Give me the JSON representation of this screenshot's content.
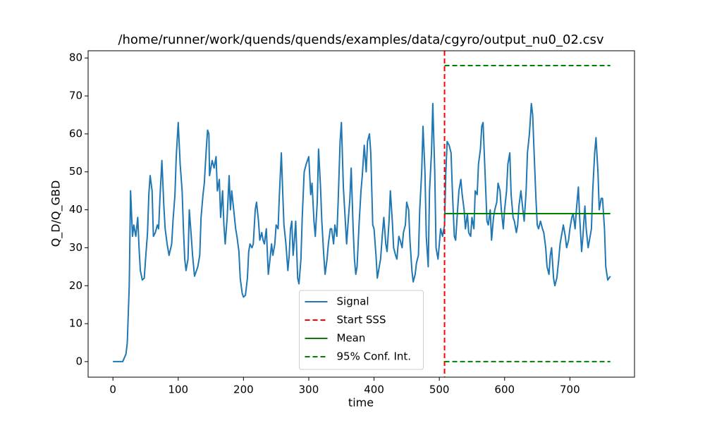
{
  "chart_data": {
    "type": "line",
    "title": "/home/runner/work/quends/quends/examples/data/cgyro/output_nu0_02.csv",
    "x_label": "time",
    "y_label": "Q_D/Q_GBD",
    "xlim": [
      -38,
      799
    ],
    "ylim": [
      -4.1,
      81.9
    ],
    "xticks": [
      0,
      100,
      200,
      300,
      400,
      500,
      600,
      700
    ],
    "yticks": [
      0,
      10,
      20,
      30,
      40,
      50,
      60,
      70,
      80
    ],
    "grid": false,
    "legend": "lower center",
    "series": [
      {
        "name": "Signal",
        "color": "#1f77b4",
        "dash": false,
        "x": [
          0,
          5,
          10,
          15,
          20,
          22,
          25,
          27,
          30,
          32,
          35,
          38,
          40,
          42,
          45,
          48,
          50,
          53,
          55,
          57,
          60,
          62,
          65,
          68,
          70,
          72,
          75,
          78,
          80,
          83,
          86,
          90,
          92,
          95,
          97,
          100,
          103,
          106,
          108,
          110,
          112,
          115,
          117,
          120,
          122,
          125,
          128,
          130,
          133,
          135,
          138,
          140,
          143,
          145,
          147,
          148,
          152,
          155,
          158,
          160,
          163,
          165,
          168,
          170,
          172,
          175,
          178,
          180,
          182,
          185,
          188,
          190,
          193,
          195,
          198,
          200,
          203,
          206,
          208,
          210,
          213,
          215,
          218,
          220,
          223,
          225,
          228,
          230,
          232,
          235,
          238,
          240,
          243,
          245,
          248,
          250,
          253,
          255,
          258,
          260,
          262,
          265,
          268,
          270,
          272,
          274,
          276,
          278,
          280,
          283,
          285,
          288,
          290,
          293,
          296,
          300,
          303,
          305,
          308,
          310,
          313,
          315,
          318,
          320,
          323,
          325,
          328,
          330,
          333,
          335,
          338,
          340,
          343,
          345,
          348,
          350,
          353,
          355,
          358,
          360,
          363,
          365,
          368,
          370,
          372,
          374,
          377,
          380,
          382,
          385,
          388,
          390,
          393,
          395,
          398,
          400,
          403,
          405,
          408,
          410,
          413,
          415,
          418,
          420,
          423,
          425,
          428,
          430,
          433,
          435,
          438,
          440,
          443,
          445,
          448,
          450,
          453,
          455,
          458,
          460,
          463,
          465,
          468,
          470,
          473,
          475,
          478,
          480,
          483,
          485,
          488,
          490,
          493,
          495,
          498,
          500,
          502,
          505,
          508,
          510,
          512,
          515,
          518,
          520,
          523,
          525,
          528,
          530,
          533,
          535,
          538,
          540,
          543,
          545,
          548,
          550,
          553,
          555,
          558,
          560,
          563,
          565,
          567,
          570,
          573,
          575,
          578,
          580,
          583,
          585,
          588,
          590,
          593,
          595,
          598,
          600,
          603,
          605,
          608,
          610,
          613,
          615,
          618,
          620,
          622,
          625,
          628,
          630,
          633,
          635,
          638,
          641,
          643,
          645,
          648,
          650,
          652,
          655,
          658,
          660,
          663,
          665,
          668,
          670,
          672,
          675,
          677,
          680,
          683,
          685,
          688,
          690,
          693,
          695,
          698,
          700,
          703,
          705,
          708,
          710,
          713,
          715,
          718,
          720,
          723,
          725,
          728,
          730,
          733,
          735,
          738,
          740,
          743,
          745,
          748,
          750,
          753,
          755,
          758,
          760,
          762
        ],
        "values": [
          0,
          0,
          0,
          0,
          2,
          5,
          20,
          45,
          33,
          36,
          33,
          38,
          30,
          24,
          21.5,
          22,
          27,
          34,
          44,
          49,
          45,
          33,
          34,
          36,
          35,
          43,
          53,
          41,
          35,
          31,
          28,
          31,
          37,
          44,
          54,
          63,
          52,
          45,
          35,
          27,
          24,
          27,
          40,
          33,
          28,
          22.5,
          24,
          25,
          28,
          38,
          44,
          47,
          56,
          61,
          60,
          49,
          53,
          51,
          54,
          45,
          48,
          38,
          45,
          36,
          31,
          38,
          49,
          40,
          45,
          40,
          35,
          33,
          29,
          22,
          18,
          17,
          17.5,
          22,
          29,
          31,
          30,
          31,
          40,
          42,
          37,
          32,
          34,
          32,
          31,
          35,
          23,
          26,
          31,
          28,
          31,
          36,
          35,
          44,
          55,
          45,
          36,
          31,
          24,
          28,
          35,
          37,
          28,
          32,
          37,
          22,
          20.5,
          27,
          38,
          50,
          52,
          54,
          44,
          47,
          37,
          33,
          42,
          56,
          46,
          37,
          28,
          23,
          27,
          31,
          35,
          35,
          31,
          36,
          33,
          42,
          58,
          63,
          46,
          40,
          31,
          36,
          43,
          51,
          35,
          27,
          23,
          25,
          36,
          45,
          49,
          57,
          50,
          58,
          60,
          55,
          36,
          35,
          28,
          22,
          25,
          27,
          34,
          38,
          31,
          29,
          37,
          45,
          37,
          30,
          28,
          27,
          33,
          32,
          30,
          34,
          36,
          42,
          40,
          32,
          24,
          21,
          23,
          26,
          28,
          40,
          50,
          62,
          50,
          33,
          25,
          45,
          55,
          68,
          50,
          30,
          27,
          31,
          35,
          33,
          36,
          50,
          58,
          57,
          55,
          45,
          33,
          32,
          40,
          45,
          48,
          44,
          40,
          35,
          39,
          34,
          33,
          38,
          35,
          45,
          44,
          52,
          56,
          62,
          63,
          50,
          37,
          36,
          40,
          32,
          38,
          40,
          42,
          47,
          45,
          40,
          35,
          40,
          45,
          52,
          55,
          44,
          38,
          37,
          34,
          36,
          41,
          45,
          40,
          37,
          45,
          55,
          60,
          68,
          65,
          56,
          43,
          36,
          35,
          37,
          35,
          34,
          30,
          25,
          23,
          28,
          30,
          22,
          20,
          22,
          27,
          31,
          34,
          36,
          33,
          30,
          32,
          35,
          38,
          39,
          35,
          40,
          46,
          38,
          29,
          33,
          41,
          35,
          30,
          32,
          35,
          45,
          55,
          59,
          50,
          40,
          43,
          43,
          35,
          25,
          21.5,
          22,
          22.5
        ]
      },
      {
        "name": "Start SSS",
        "color": "#ff0000",
        "dash": true,
        "vline": 508
      },
      {
        "name": "Mean",
        "color": "#008000",
        "dash": false,
        "x": [
          508,
          762
        ],
        "values": [
          39,
          39
        ]
      },
      {
        "name": "95% Conf. Int.",
        "color": "#008000",
        "dash": true,
        "x": [
          508,
          762
        ],
        "values": [
          78,
          78
        ],
        "lower_values": [
          0,
          0
        ]
      }
    ]
  }
}
